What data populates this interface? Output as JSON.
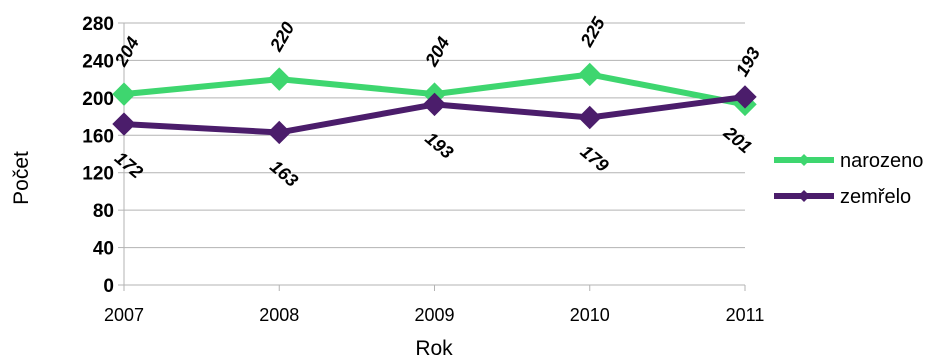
{
  "chart_data": {
    "type": "line",
    "categories": [
      "2007",
      "2008",
      "2009",
      "2010",
      "2011"
    ],
    "series": [
      {
        "name": "narozeno",
        "values": [
          204,
          220,
          204,
          225,
          193
        ],
        "color": "#3ed66f"
      },
      {
        "name": "zemřelo",
        "values": [
          172,
          163,
          193,
          179,
          201
        ],
        "color": "#4b1d6b"
      }
    ],
    "xlabel": "Rok",
    "ylabel": "Počet",
    "ylim": [
      0,
      280
    ],
    "yticks": [
      0,
      40,
      80,
      120,
      160,
      200,
      240,
      280
    ],
    "grid": "horizontal",
    "legend": "right",
    "data_labels": true
  }
}
